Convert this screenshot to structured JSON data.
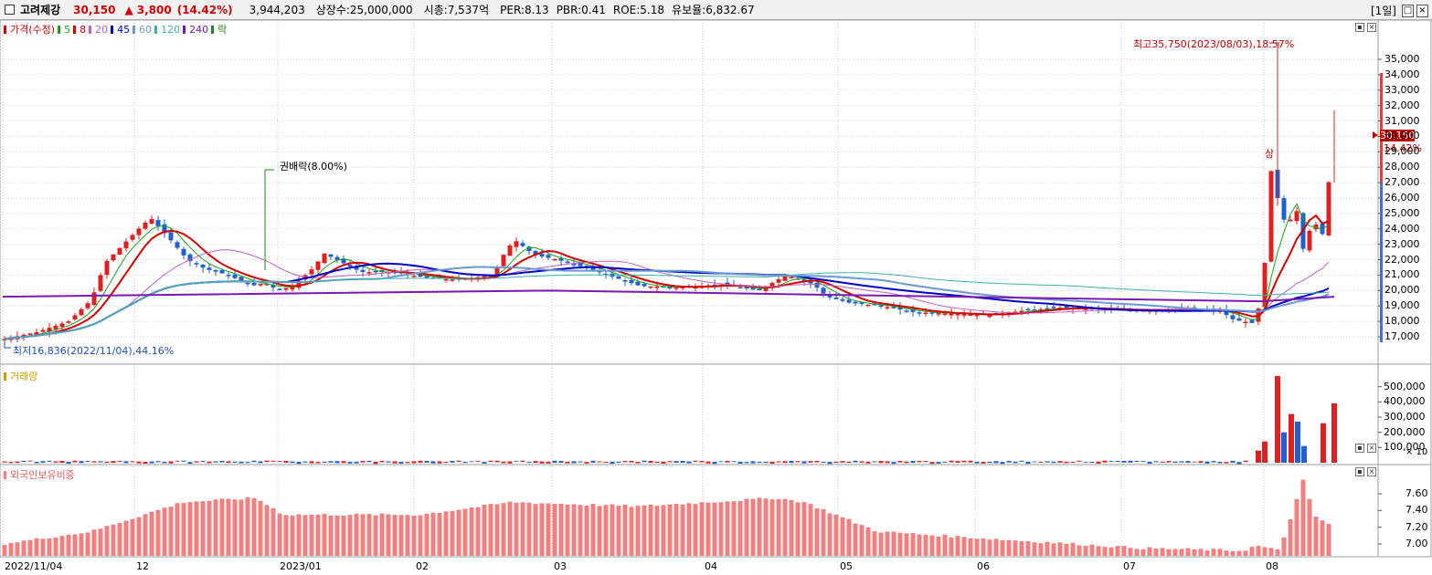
{
  "header": {
    "stock_name": "고려제강",
    "price": "30,150",
    "change_arrow": "▲",
    "change": "3,800",
    "change_pct": "(14.42%)",
    "volume": "3,944,203",
    "listed_shares": "상장수:25,000,000",
    "market_cap": "시총:7,537억",
    "per": "PER:8.13",
    "pbr": "PBR:0.41",
    "roe": "ROE:5.18",
    "float": "유보율:6,832.67",
    "period": "[1일]"
  },
  "price_panel": {
    "legend": [
      {
        "label": "가격(수정)",
        "color": "#d40000"
      },
      {
        "label": "5",
        "color": "#1aa51a"
      },
      {
        "label": "8",
        "color": "#d40000"
      },
      {
        "label": "20",
        "color": "#c060c0"
      },
      {
        "label": "45",
        "color": "#0000c8"
      },
      {
        "label": "60",
        "color": "#6a9ad0"
      },
      {
        "label": "120",
        "color": "#40b0a8"
      },
      {
        "label": "240",
        "color": "#7a1ab0"
      },
      {
        "label": "락",
        "color": "#1a8a1a"
      }
    ],
    "y_ticks": [
      "35,000",
      "34,000",
      "33,000",
      "32,000",
      "31,000",
      "30,000",
      "29,000",
      "28,000",
      "27,000",
      "26,000",
      "25,000",
      "24,000",
      "23,000",
      "22,000",
      "21,000",
      "20,000",
      "19,000",
      "18,000",
      "17,000"
    ],
    "current_price_tag": "30,150",
    "current_pct_tag": "14.42%",
    "high_annotation": "최고35,750(2023/08/03),18.57%",
    "low_annotation": "최저16,836(2022/11/04),44.16%",
    "rights_annotation": "권배락(8.00%)",
    "limit_up_label": "상"
  },
  "volume_panel": {
    "legend": {
      "label": "거래량",
      "color": "#c8a000"
    },
    "y_ticks": [
      "500,000",
      "400,000",
      "300,000",
      "200,000",
      "100,000"
    ],
    "unit": "× 10"
  },
  "foreign_panel": {
    "legend": {
      "label": "외국인보유비중",
      "color": "#f08080"
    },
    "y_ticks": [
      "7.60",
      "7.40",
      "7.20",
      "7.00"
    ]
  },
  "x_axis": {
    "labels": [
      "2022/11/04",
      "12",
      "2023/01",
      "02",
      "03",
      "04",
      "05",
      "06",
      "07",
      "08"
    ]
  },
  "colors": {
    "up": "#e02020",
    "down": "#2060d0",
    "foreign_bar": "#f08080"
  },
  "chart_data": [
    {
      "type": "candlestick",
      "title": "고려제강",
      "x_range": [
        "2022-11-04",
        "2023-08-23"
      ],
      "ylim": [
        16500,
        36000
      ],
      "summary_points": [
        {
          "date": "2022-11-04",
          "value": 16836,
          "note": "최저16,836(2022/11/04),44.16%"
        },
        {
          "date": "2022-12-05",
          "value": 25000
        },
        {
          "date": "2023-01-05",
          "value": 23000
        },
        {
          "date": "2023-02-24",
          "value": 23600
        },
        {
          "date": "2023-04-20",
          "value": 21500
        },
        {
          "date": "2023-05-25",
          "value": 18500
        },
        {
          "date": "2023-07-28",
          "value": 17800
        },
        {
          "date": "2023-08-03",
          "value": 35750,
          "note": "최고35,750(2023/08/03),18.57%"
        },
        {
          "date": "2023-08-23",
          "value": 30150
        }
      ],
      "moving_averages": [
        "5",
        "8",
        "20",
        "45",
        "60",
        "120",
        "240"
      ]
    },
    {
      "type": "bar",
      "title": "거래량",
      "unit": "× 10",
      "ylim": [
        0,
        600000
      ],
      "recent_values": [
        80000,
        140000,
        570000,
        200000,
        320000,
        270000,
        110000,
        260000,
        390000
      ]
    },
    {
      "type": "bar",
      "title": "외국인보유비중",
      "ylim": [
        6.9,
        7.8
      ],
      "summary_values": [
        7.0,
        7.15,
        7.5,
        7.55,
        7.3,
        7.5,
        7.35,
        7.55,
        7.45,
        7.1,
        6.95,
        6.92,
        7.82,
        7.35,
        7.2
      ]
    }
  ]
}
